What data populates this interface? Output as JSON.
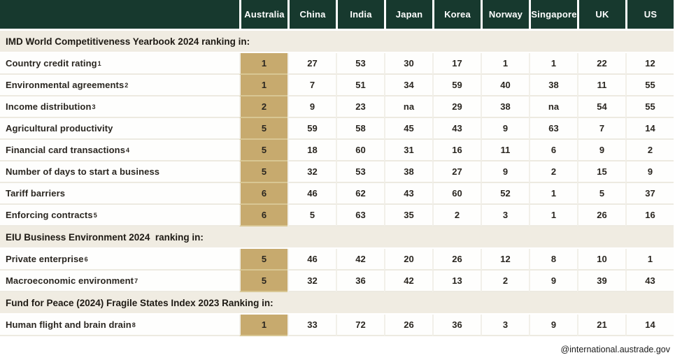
{
  "chart_data": {
    "type": "table",
    "columns": [
      "Australia",
      "China",
      "India",
      "Japan",
      "Korea",
      "Norway",
      "Singapore",
      "UK",
      "US"
    ],
    "highlight_column": "Australia",
    "sections": [
      {
        "title": "IMD World Competitiveness Yearbook 2024 ranking in:",
        "rows": [
          {
            "label": "Country credit rating",
            "superscript": "1",
            "values": [
              "1",
              "27",
              "53",
              "30",
              "17",
              "1",
              "1",
              "22",
              "12"
            ]
          },
          {
            "label": "Environmental agreements",
            "superscript": "2",
            "values": [
              "1",
              "7",
              "51",
              "34",
              "59",
              "40",
              "38",
              "11",
              "55"
            ]
          },
          {
            "label": "Income distribution",
            "superscript": "3",
            "values": [
              "2",
              "9",
              "23",
              "na",
              "29",
              "38",
              "na",
              "54",
              "55"
            ]
          },
          {
            "label": "Agricultural productivity",
            "superscript": "",
            "values": [
              "5",
              "59",
              "58",
              "45",
              "43",
              "9",
              "63",
              "7",
              "14"
            ]
          },
          {
            "label": "Financial card transactions",
            "superscript": "4",
            "values": [
              "5",
              "18",
              "60",
              "31",
              "16",
              "11",
              "6",
              "9",
              "2"
            ]
          },
          {
            "label": "Number of days to start a business",
            "superscript": "",
            "values": [
              "5",
              "32",
              "53",
              "38",
              "27",
              "9",
              "2",
              "15",
              "9"
            ]
          },
          {
            "label": "Tariff barriers",
            "superscript": "",
            "values": [
              "6",
              "46",
              "62",
              "43",
              "60",
              "52",
              "1",
              "5",
              "37"
            ]
          },
          {
            "label": "Enforcing contracts",
            "superscript": "5",
            "values": [
              "6",
              "5",
              "63",
              "35",
              "2",
              "3",
              "1",
              "26",
              "16"
            ]
          }
        ]
      },
      {
        "title": "EIU Business Environment 2024  ranking in:",
        "rows": [
          {
            "label": "Private enterprise",
            "superscript": "6",
            "values": [
              "5",
              "46",
              "42",
              "20",
              "26",
              "12",
              "8",
              "10",
              "1"
            ]
          },
          {
            "label": "Macroeconomic environment",
            "superscript": "7",
            "values": [
              "5",
              "32",
              "36",
              "42",
              "13",
              "2",
              "9",
              "39",
              "43"
            ]
          }
        ]
      },
      {
        "title": "Fund for Peace (2024) Fragile States Index 2023 Ranking in:",
        "rows": [
          {
            "label": "Human flight and brain drain",
            "superscript": "8",
            "values": [
              "1",
              "33",
              "72",
              "26",
              "36",
              "3",
              "9",
              "21",
              "14"
            ]
          }
        ]
      }
    ]
  },
  "footer": {
    "credit": "@international.austrade.gov"
  },
  "colors": {
    "header_green": "#17392E",
    "highlight_tan": "#C7AA6E",
    "section_band_beige": "#F0ECE2",
    "row_separator": "#EDEAE1",
    "text": "#2A2620"
  }
}
